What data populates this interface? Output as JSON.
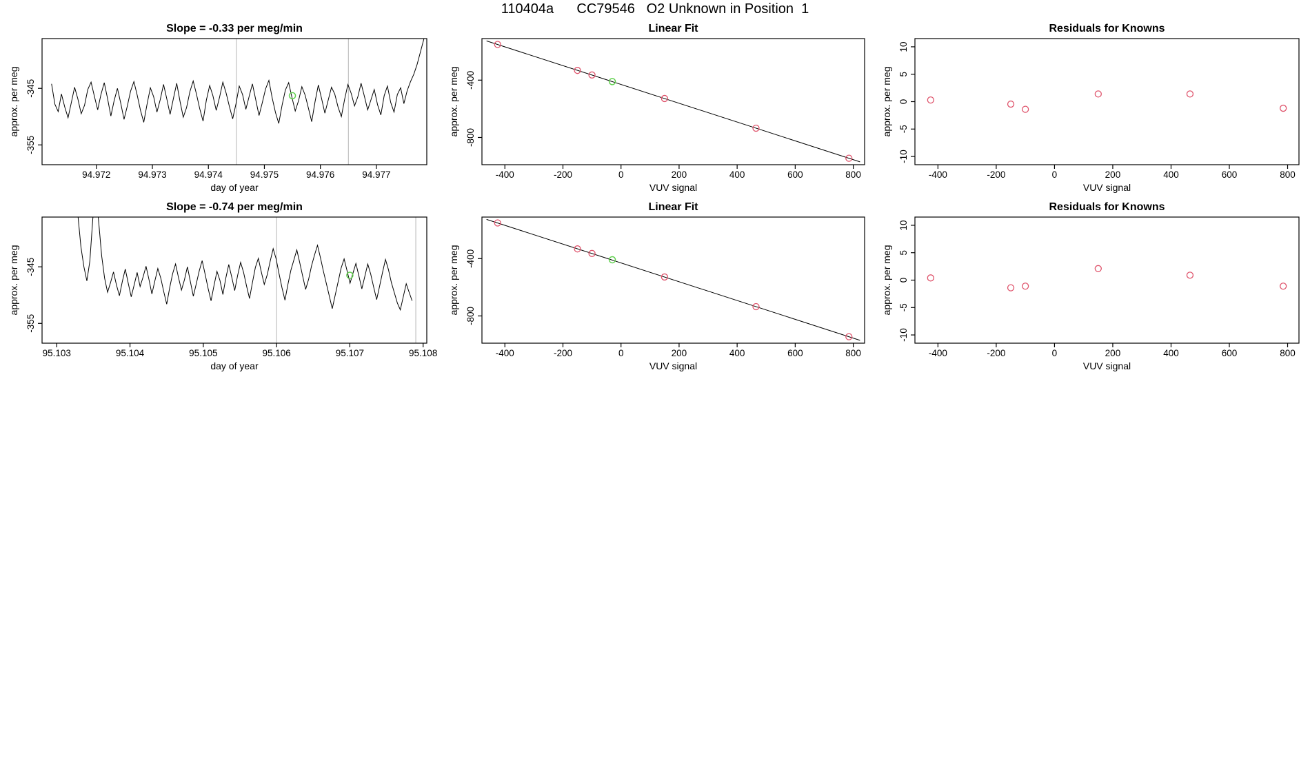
{
  "header": {
    "title": "110404a      CC79546   O2 Unknown in Position  1"
  },
  "colors": {
    "background": "#ffffff",
    "line": "#000000",
    "known_point": "#DF536B",
    "unknown_point": "#61D04F",
    "vline": "#b4b4b4"
  },
  "chart_data": [
    {
      "panel": "top-left",
      "type": "line",
      "title": "Slope =  -0.33  per meg/min",
      "xlabel": "day of year",
      "ylabel": "approx. per meg",
      "xlim": [
        94.97103,
        94.9779
      ],
      "ylim": [
        -358.5,
        -336.2
      ],
      "xticks": [
        94.972,
        94.973,
        94.974,
        94.975,
        94.976,
        94.977
      ],
      "yticks": [
        -345,
        -355
      ],
      "x_start": 94.9712,
      "x_step": 5.88e-05,
      "y": [
        -344.2,
        -347.8,
        -349.1,
        -346.0,
        -348.3,
        -350.2,
        -347.5,
        -344.8,
        -346.9,
        -349.5,
        -348.0,
        -345.2,
        -343.9,
        -346.4,
        -348.8,
        -346.1,
        -344.0,
        -346.8,
        -349.9,
        -347.2,
        -345.0,
        -347.6,
        -350.5,
        -348.1,
        -345.5,
        -343.8,
        -346.2,
        -348.9,
        -351.0,
        -347.8,
        -344.9,
        -346.5,
        -349.2,
        -347.0,
        -344.3,
        -346.9,
        -349.6,
        -346.8,
        -344.1,
        -347.3,
        -350.1,
        -348.4,
        -345.6,
        -343.7,
        -346.0,
        -348.6,
        -350.8,
        -347.1,
        -344.5,
        -346.3,
        -348.9,
        -346.6,
        -343.9,
        -345.8,
        -348.2,
        -350.4,
        -347.7,
        -344.6,
        -346.1,
        -348.7,
        -346.4,
        -344.2,
        -347.0,
        -349.8,
        -347.5,
        -345.1,
        -343.6,
        -346.7,
        -349.3,
        -351.2,
        -348.0,
        -345.3,
        -344.0,
        -346.6,
        -349.0,
        -347.2,
        -344.7,
        -346.2,
        -348.5,
        -350.9,
        -347.4,
        -344.4,
        -346.8,
        -349.4,
        -347.1,
        -344.8,
        -346.0,
        -348.3,
        -350.0,
        -346.9,
        -344.3,
        -345.9,
        -348.1,
        -346.5,
        -344.1,
        -346.4,
        -348.8,
        -347.0,
        -345.2,
        -347.9,
        -349.7,
        -346.3,
        -344.6,
        -347.5,
        -349.2,
        -346.1,
        -344.9,
        -347.7,
        -345.4,
        -343.8,
        -342.5,
        -340.8,
        -338.6,
        -336.4,
        -334.0
      ],
      "vlines": [
        94.9745,
        94.9765
      ],
      "unknown_marker": {
        "x": 94.9755,
        "y": -346.3
      }
    },
    {
      "panel": "top-middle",
      "type": "scatter-fit",
      "title": "Linear Fit",
      "xlabel": "VUV signal",
      "ylabel": "approx. per meg",
      "xlim": [
        -479,
        839
      ],
      "ylim": [
        -990,
        -110
      ],
      "xticks": [
        -400,
        -200,
        0,
        200,
        400,
        600,
        800
      ],
      "yticks": [
        -800,
        -400
      ],
      "fit": {
        "slope": -0.656,
        "intercept": -430
      },
      "points": [
        {
          "x": -425,
          "y": -151
        },
        {
          "x": -150,
          "y": -332
        },
        {
          "x": -100,
          "y": -364
        },
        {
          "x": 150,
          "y": -528
        },
        {
          "x": 465,
          "y": -735
        },
        {
          "x": 785,
          "y": -945
        }
      ],
      "unknown_marker": {
        "x": -30,
        "y": -410
      }
    },
    {
      "panel": "top-right",
      "type": "scatter",
      "title": "Residuals for Knowns",
      "xlabel": "VUV signal",
      "ylabel": "approx. per meg",
      "xlim": [
        -479,
        839
      ],
      "ylim": [
        -11.5,
        11.5
      ],
      "xticks": [
        -400,
        -200,
        0,
        200,
        400,
        600,
        800
      ],
      "yticks": [
        -10,
        -5,
        0,
        5,
        10
      ],
      "points": [
        {
          "x": -425,
          "y": 0.3
        },
        {
          "x": -150,
          "y": -0.45
        },
        {
          "x": -100,
          "y": -1.4
        },
        {
          "x": 150,
          "y": 1.4
        },
        {
          "x": 465,
          "y": 1.4
        },
        {
          "x": 785,
          "y": -1.2
        }
      ]
    },
    {
      "panel": "bottom-left",
      "type": "line",
      "title": "Slope =  -0.74  per meg/min",
      "xlabel": "day of year",
      "ylabel": "approx. per meg",
      "xlim": [
        95.1028,
        95.10805
      ],
      "ylim": [
        -358.5,
        -336.2
      ],
      "xticks": [
        95.103,
        95.104,
        95.105,
        95.106,
        95.107,
        95.108
      ],
      "yticks": [
        -345,
        -355
      ],
      "x_start": 95.10325,
      "x_step": 4.035e-05,
      "y": [
        -331.0,
        -336.0,
        -341.5,
        -345.0,
        -347.5,
        -344.0,
        -336.5,
        -331.5,
        -337.0,
        -343.0,
        -347.0,
        -349.5,
        -347.8,
        -345.9,
        -348.2,
        -350.1,
        -347.6,
        -345.4,
        -347.9,
        -350.3,
        -348.2,
        -346.0,
        -348.5,
        -346.8,
        -344.9,
        -347.2,
        -349.8,
        -347.5,
        -345.3,
        -347.0,
        -349.4,
        -351.6,
        -348.7,
        -346.2,
        -344.5,
        -346.9,
        -349.1,
        -347.3,
        -345.0,
        -347.6,
        -350.2,
        -348.0,
        -345.7,
        -343.9,
        -346.3,
        -348.8,
        -351.0,
        -348.3,
        -345.8,
        -347.4,
        -349.9,
        -347.0,
        -344.6,
        -346.8,
        -349.2,
        -346.5,
        -344.2,
        -346.0,
        -348.4,
        -350.6,
        -347.8,
        -345.1,
        -343.5,
        -345.9,
        -348.1,
        -346.4,
        -344.0,
        -341.8,
        -343.6,
        -346.2,
        -348.7,
        -350.9,
        -348.1,
        -345.6,
        -343.8,
        -342.0,
        -344.3,
        -346.7,
        -349.0,
        -347.2,
        -344.8,
        -342.9,
        -341.2,
        -343.4,
        -345.8,
        -348.0,
        -350.2,
        -352.4,
        -350.0,
        -347.6,
        -345.2,
        -343.6,
        -345.7,
        -347.9,
        -346.1,
        -344.4,
        -346.6,
        -348.9,
        -346.7,
        -344.5,
        -346.3,
        -348.6,
        -350.8,
        -348.4,
        -346.0,
        -343.7,
        -345.5,
        -347.8,
        -349.6,
        -351.4,
        -352.6,
        -350.3,
        -348.0,
        -349.5,
        -351.0
      ],
      "vlines": [
        95.106,
        95.1079
      ],
      "unknown_marker": {
        "x": 95.107,
        "y": -346.5
      }
    },
    {
      "panel": "bottom-middle",
      "type": "scatter-fit",
      "title": "Linear Fit",
      "xlabel": "VUV signal",
      "ylabel": "approx. per meg",
      "xlim": [
        -479,
        839
      ],
      "ylim": [
        -990,
        -110
      ],
      "xticks": [
        -400,
        -200,
        0,
        200,
        400,
        600,
        800
      ],
      "yticks": [
        -800,
        -400
      ],
      "fit": {
        "slope": -0.656,
        "intercept": -430
      },
      "points": [
        {
          "x": -425,
          "y": -151
        },
        {
          "x": -150,
          "y": -332
        },
        {
          "x": -100,
          "y": -364
        },
        {
          "x": 150,
          "y": -528
        },
        {
          "x": 465,
          "y": -735
        },
        {
          "x": 785,
          "y": -945
        }
      ],
      "unknown_marker": {
        "x": -30,
        "y": -408
      }
    },
    {
      "panel": "bottom-right",
      "type": "scatter",
      "title": "Residuals for Knowns",
      "xlabel": "VUV signal",
      "ylabel": "approx. per meg",
      "xlim": [
        -479,
        839
      ],
      "ylim": [
        -11.5,
        11.5
      ],
      "xticks": [
        -400,
        -200,
        0,
        200,
        400,
        600,
        800
      ],
      "yticks": [
        -10,
        -5,
        0,
        5,
        10
      ],
      "points": [
        {
          "x": -425,
          "y": 0.4
        },
        {
          "x": -150,
          "y": -1.4
        },
        {
          "x": -100,
          "y": -1.1
        },
        {
          "x": 150,
          "y": 2.1
        },
        {
          "x": 465,
          "y": 0.9
        },
        {
          "x": 785,
          "y": -1.1
        }
      ]
    }
  ]
}
